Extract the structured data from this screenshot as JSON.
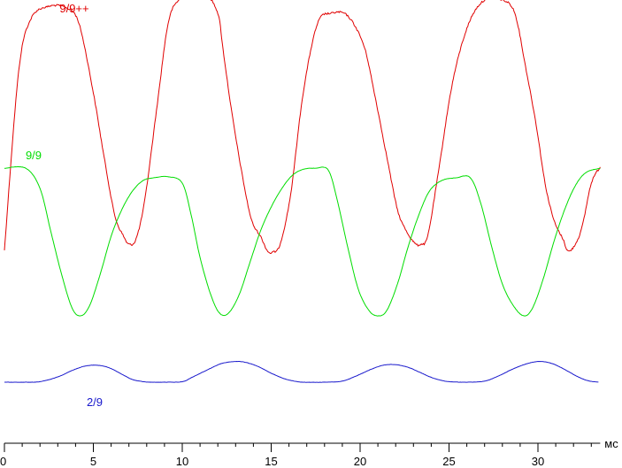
{
  "chart_data": {
    "type": "line",
    "title": "",
    "xlabel": "",
    "ylabel": "",
    "x_unit": "мс",
    "xlim": [
      0,
      33.5
    ],
    "xticks": [
      0,
      5,
      10,
      15,
      20,
      25,
      30
    ],
    "grid": false,
    "legend": "inline labels beside each curve",
    "series": [
      {
        "name": "9/9++",
        "color": "#e00000",
        "noise": 2.2,
        "x": [
          0,
          0.8,
          1.5,
          2.5,
          3.5,
          4.2,
          5.0,
          5.6,
          6.2,
          6.7,
          7.0,
          7.4,
          7.9,
          8.6,
          9.2,
          9.8,
          10.5,
          11.3,
          12.0,
          12.3,
          12.8,
          13.4,
          13.9,
          14.4,
          14.8,
          15.1,
          15.5,
          16.1,
          16.8,
          17.6,
          18.4,
          19.3,
          20.2,
          20.8,
          21.5,
          22.1,
          22.6,
          23.1,
          23.4,
          23.8,
          24.4,
          25.2,
          26.1,
          27.0,
          28.0,
          28.7,
          29.3,
          29.9,
          30.4,
          30.9,
          31.4,
          31.7,
          32.1,
          32.5,
          33.0,
          33.5
        ],
        "y": [
          12.4,
          46.0,
          56.0,
          58.3,
          58.0,
          55.0,
          42.0,
          30.0,
          19.0,
          15.0,
          13.5,
          14.5,
          22.0,
          40.0,
          55.0,
          59.5,
          60.0,
          60.6,
          57.0,
          50.0,
          38.0,
          26.0,
          18.0,
          15.0,
          12.2,
          12.0,
          13.5,
          23.0,
          42.0,
          55.0,
          57.0,
          56.5,
          51.0,
          42.0,
          30.0,
          20.0,
          16.0,
          13.6,
          13.5,
          15.0,
          27.0,
          44.0,
          55.0,
          59.5,
          59.5,
          57.0,
          47.0,
          36.0,
          25.0,
          18.0,
          14.5,
          12.2,
          13.5,
          17.0,
          25.0,
          28.0
        ]
      },
      {
        "name": "9/9",
        "color": "#00dd00",
        "noise": 0.3,
        "x": [
          0,
          1.2,
          2.0,
          2.6,
          3.2,
          3.8,
          4.3,
          4.8,
          5.4,
          6.0,
          6.6,
          7.2,
          7.8,
          8.4,
          9.2,
          10.0,
          10.5,
          11.0,
          11.6,
          12.1,
          12.6,
          13.2,
          13.8,
          14.4,
          15.0,
          15.6,
          16.2,
          16.8,
          17.5,
          18.2,
          18.7,
          19.3,
          19.9,
          20.5,
          21.0,
          21.5,
          22.1,
          22.7,
          23.3,
          23.9,
          24.6,
          25.4,
          26.2,
          26.8,
          27.4,
          28.0,
          28.6,
          29.2,
          29.7,
          30.3,
          30.9,
          31.5,
          32.1,
          32.7,
          33.5
        ],
        "y": [
          27.8,
          27.8,
          24.0,
          16.0,
          8.0,
          1.5,
          0.0,
          2.0,
          8.0,
          15.0,
          20.0,
          23.5,
          25.5,
          26.0,
          26.2,
          25.0,
          19.0,
          11.0,
          4.0,
          0.5,
          0.5,
          4.0,
          10.0,
          16.0,
          20.5,
          24.0,
          26.5,
          27.6,
          27.8,
          27.5,
          22.0,
          13.0,
          5.0,
          1.0,
          0.0,
          1.0,
          6.0,
          13.0,
          19.0,
          23.5,
          25.5,
          26.0,
          26.0,
          21.0,
          13.0,
          6.0,
          2.0,
          0.0,
          1.5,
          7.0,
          14.0,
          20.0,
          24.5,
          27.0,
          27.8
        ]
      },
      {
        "name": "2/9",
        "color": "#1818cc",
        "noise": 0.25,
        "x": [
          0,
          1.0,
          2.0,
          3.0,
          3.8,
          4.5,
          5.2,
          5.9,
          6.6,
          7.2,
          7.8,
          8.2,
          9.0,
          10.0,
          10.6,
          11.4,
          12.2,
          13.0,
          13.6,
          14.3,
          15.0,
          15.7,
          16.3,
          16.8,
          18.0,
          19.0,
          19.8,
          20.6,
          21.3,
          22.0,
          22.7,
          23.4,
          24.0,
          24.5,
          25.0,
          26.0,
          27.0,
          27.8,
          28.6,
          29.4,
          30.1,
          30.8,
          31.5,
          32.2,
          32.8,
          33.4
        ],
        "y": [
          -12.5,
          -12.5,
          -12.4,
          -11.5,
          -10.3,
          -9.5,
          -9.3,
          -9.8,
          -11.0,
          -12.0,
          -12.4,
          -12.5,
          -12.5,
          -12.4,
          -11.5,
          -10.2,
          -9.0,
          -8.6,
          -8.8,
          -9.6,
          -10.8,
          -11.8,
          -12.3,
          -12.5,
          -12.5,
          -12.3,
          -11.3,
          -10.1,
          -9.3,
          -9.2,
          -9.7,
          -10.7,
          -11.6,
          -12.1,
          -12.4,
          -12.5,
          -12.3,
          -11.3,
          -10.0,
          -9.0,
          -8.6,
          -9.0,
          -10.1,
          -11.4,
          -12.2,
          -12.5
        ]
      }
    ]
  },
  "labels": {
    "series_0": "9/9++",
    "series_1": "9/9",
    "series_2": "2/9",
    "x_unit": "мс"
  }
}
